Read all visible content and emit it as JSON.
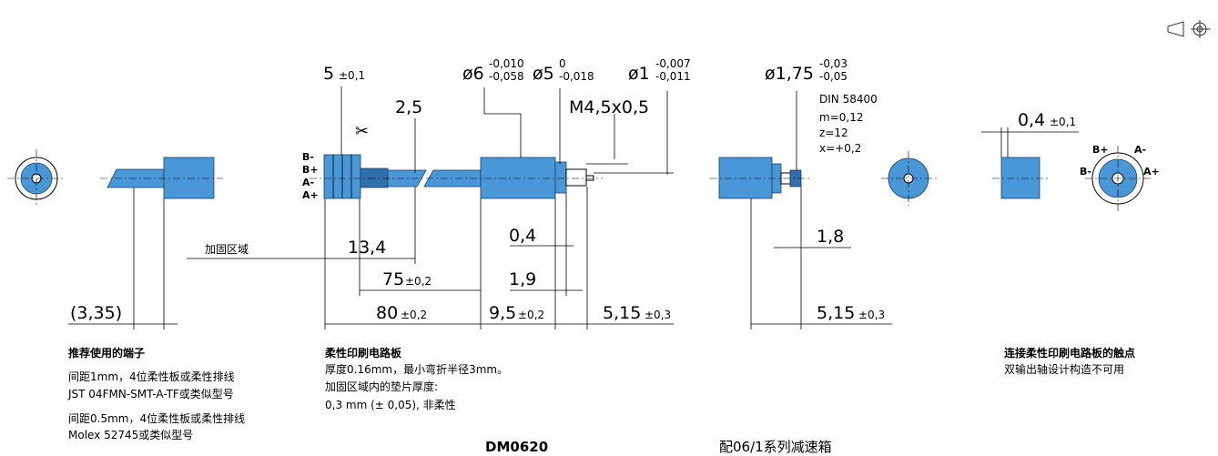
{
  "dimensions": {
    "d5": "5",
    "d5_tol": "±0,1",
    "d2_5": "2,5",
    "dia6": "ø6",
    "dia6_up": "-0,010",
    "dia6_lo": "-0,058",
    "dia5": "ø5",
    "dia5_up": "0",
    "dia5_lo": "-0,018",
    "dia1": "ø1",
    "dia1_up": "-0,007",
    "dia1_lo": "-0,011",
    "thread": "M4,5x0,5",
    "dia175": "ø1,75",
    "dia175_up": "-0,03",
    "dia175_lo": "-0,05",
    "gear": [
      "DIN 58400",
      "m=0,12",
      "z=12",
      "x=+0,2"
    ],
    "d04r": "0,4",
    "d04r_tol": "±0,1",
    "zone": "加固区域",
    "d13_4": "13,4",
    "d0_4": "0,4",
    "d1_8": "1,8",
    "d75": "75",
    "d75_tol": "±0,2",
    "d1_9": "1,9",
    "d3_35": "(3,35)",
    "d80": "80",
    "d80_tol": "±0,2",
    "d9_5": "9,5",
    "d9_5_tol": "±0,2",
    "d5_15a": "5,15",
    "d5_15a_tol": "±0,3",
    "d5_15b": "5,15",
    "d5_15b_tol": "±0,3"
  },
  "pins_left": [
    "B-",
    "B+",
    "A-",
    "A+"
  ],
  "pins_right": [
    "B+",
    "A-",
    "B-",
    "A+"
  ],
  "notes": {
    "terminal": [
      "推荐使用的端子",
      "间距1mm，4位柔性板或柔性排线",
      "JST 04FMN-SMT-A-TF或类似型号",
      "间距0.5mm，4位柔性板或柔性排线",
      "Molex 52745或类似型号"
    ],
    "fpc": [
      "柔性印刷电路板",
      "厚度0.16mm，最小弯折半径3mm。",
      "加固区域内的垫片厚度:",
      "0,3 mm (± 0,05), 非柔性"
    ],
    "contacts": [
      "连接柔性印刷电路板的触点",
      "双输出轴设计构造不可用"
    ]
  },
  "footer": {
    "model": "DM0620",
    "gearbox": "配06/1系列减速箱"
  }
}
